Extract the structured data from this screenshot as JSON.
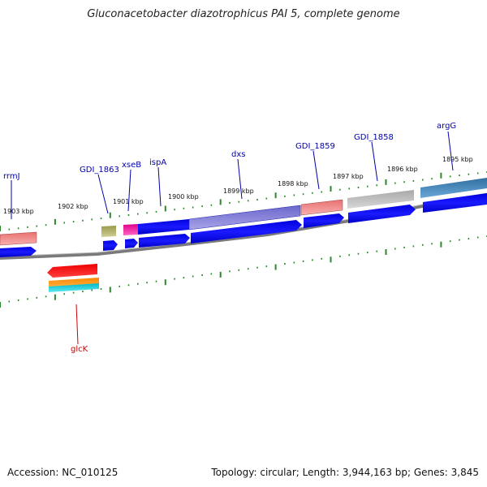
{
  "title": "Gluconacetobacter diazotrophicus PAI 5, complete genome",
  "footer": {
    "accession": "Accession: NC_010125",
    "summary": "Topology: circular; Length: 3,944,163 bp; Genes: 3,845"
  },
  "colors": {
    "cds_forward": "#0000ee",
    "backbone": "#808080",
    "tick": "#2a8a2a",
    "label_forward": "#0000aa",
    "label_reverse": "#cc0000"
  },
  "ticks": [
    {
      "label": "1903 kbp"
    },
    {
      "label": "1902 kbp"
    },
    {
      "label": "1901 kbp"
    },
    {
      "label": "1900 kbp"
    },
    {
      "label": "1899 kbp"
    },
    {
      "label": "1898 kbp"
    },
    {
      "label": "1897 kbp"
    },
    {
      "label": "1896 kbp"
    },
    {
      "label": "1895 kbp"
    }
  ],
  "gene_labels": [
    {
      "name": "rrmJ",
      "strand": "forward"
    },
    {
      "name": "GDI_1863",
      "strand": "forward"
    },
    {
      "name": "xseB",
      "strand": "forward"
    },
    {
      "name": "ispA",
      "strand": "forward"
    },
    {
      "name": "dxs",
      "strand": "forward"
    },
    {
      "name": "GDI_1859",
      "strand": "forward"
    },
    {
      "name": "GDI_1858",
      "strand": "forward"
    },
    {
      "name": "argG",
      "strand": "forward"
    },
    {
      "name": "glcK",
      "strand": "reverse"
    }
  ]
}
